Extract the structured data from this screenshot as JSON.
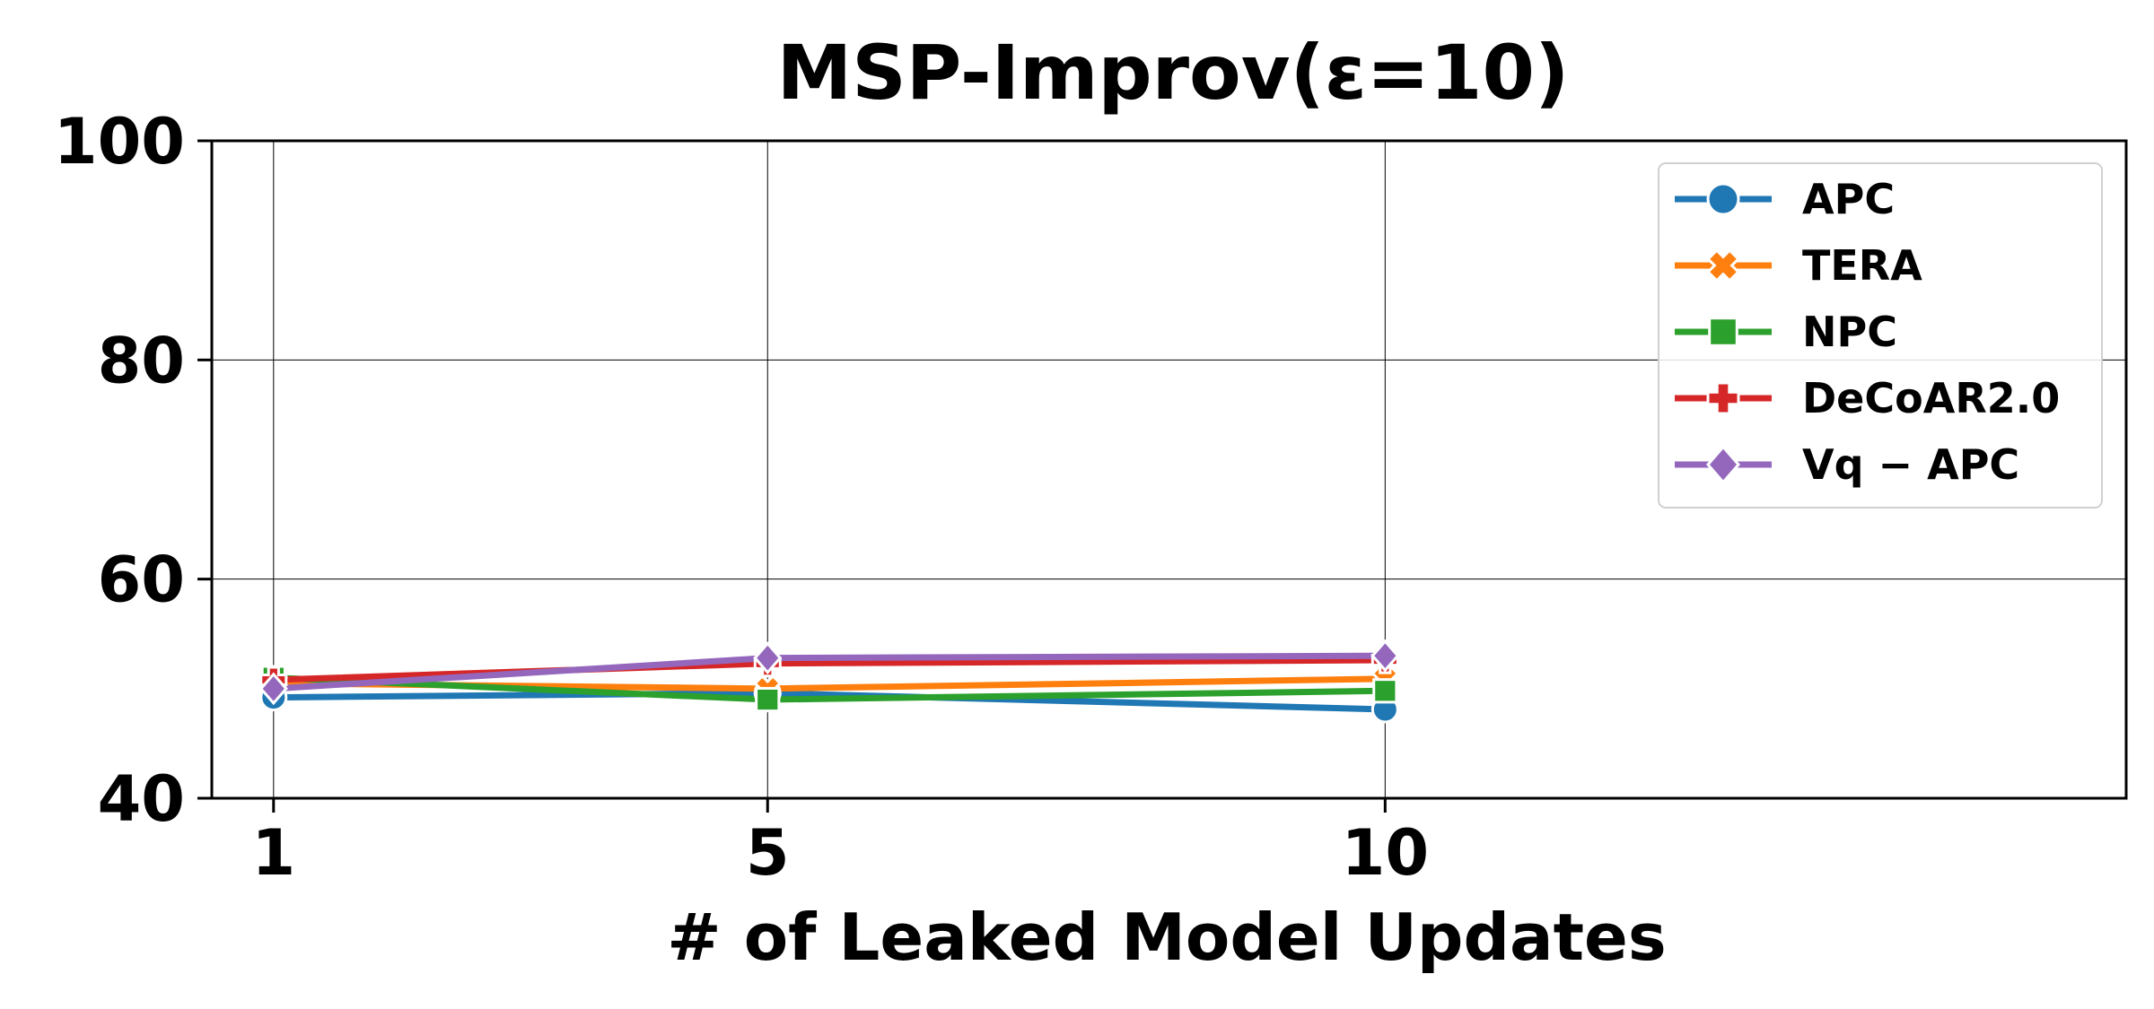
{
  "chart_data": {
    "type": "line",
    "title": "MSP-Improv(ε=10)",
    "xlabel": "# of Leaked Model Updates",
    "ylabel": "",
    "x": [
      1,
      5,
      10
    ],
    "x_tick_labels": [
      "1",
      "5",
      "10"
    ],
    "y_ticks": [
      40,
      60,
      80,
      100
    ],
    "ylim": [
      40,
      100
    ],
    "grid": true,
    "legend_position": "top-right",
    "series": [
      {
        "name": "APC",
        "color": "#1f77b4",
        "marker": "circle",
        "values": [
          49.2,
          49.6,
          48.1
        ]
      },
      {
        "name": "TERA",
        "color": "#ff7f0e",
        "marker": "x-filled",
        "values": [
          50.5,
          50.0,
          50.9
        ]
      },
      {
        "name": "NPC",
        "color": "#2ca02c",
        "marker": "square",
        "values": [
          51.0,
          49.0,
          49.8
        ]
      },
      {
        "name": "DeCoAR2.0",
        "color": "#d62728",
        "marker": "plus-filled",
        "values": [
          50.8,
          52.3,
          52.6
        ]
      },
      {
        "name": "Vq − APC",
        "color": "#9467bd",
        "marker": "diamond",
        "values": [
          50.0,
          52.8,
          53.0
        ]
      }
    ]
  }
}
